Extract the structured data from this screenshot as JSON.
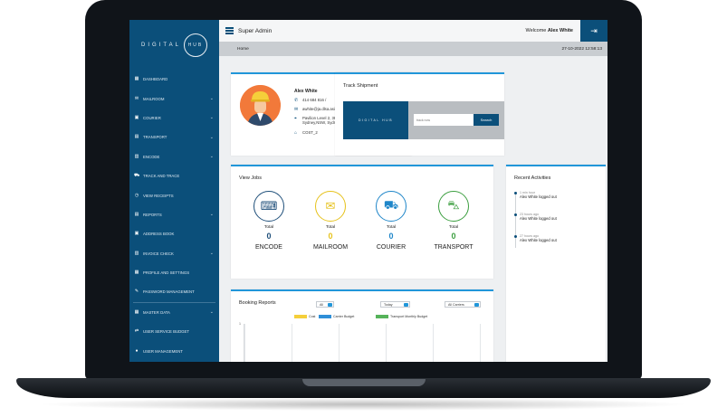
{
  "sidebar": {
    "logo_text": "DIGITAL",
    "logo_ring_text": "HUB",
    "items": [
      {
        "label": "DASHBOARD",
        "icon": "dashboard-icon",
        "glyph": "▦",
        "chevron": false
      },
      {
        "label": "MAILROOM",
        "icon": "mail-icon",
        "glyph": "✉",
        "chevron": true
      },
      {
        "label": "COURIER",
        "icon": "courier-icon",
        "glyph": "▣",
        "chevron": true
      },
      {
        "label": "TRANSPORT",
        "icon": "transport-icon",
        "glyph": "▤",
        "chevron": true
      },
      {
        "label": "ENCODE",
        "icon": "encode-icon",
        "glyph": "▥",
        "chevron": true
      },
      {
        "label": "TRACK AND TRACE",
        "icon": "truck-icon",
        "glyph": "⛟",
        "chevron": false
      },
      {
        "label": "VIEW RECEIPTS",
        "icon": "receipt-icon",
        "glyph": "◷",
        "chevron": false
      },
      {
        "label": "REPORTS",
        "icon": "report-icon",
        "glyph": "▤",
        "chevron": true
      },
      {
        "label": "ADDRESS BOOK",
        "icon": "address-book-icon",
        "glyph": "▣",
        "chevron": false
      },
      {
        "label": "INVOICE CHECK",
        "icon": "invoice-icon",
        "glyph": "▥",
        "chevron": true
      },
      {
        "label": "PROFILE AND SETTINGS",
        "icon": "settings-icon",
        "glyph": "▦",
        "chevron": false
      },
      {
        "label": "PASSWORD MANAGEMENT",
        "icon": "password-icon",
        "glyph": "✎",
        "chevron": false
      },
      {
        "label": "MASTER DATA",
        "icon": "database-icon",
        "glyph": "▦",
        "chevron": true
      },
      {
        "label": "USER SERVICE BUDGET",
        "icon": "budget-icon",
        "glyph": "⇄",
        "chevron": false
      },
      {
        "label": "USER MANAGEMENT",
        "icon": "user-management-icon",
        "glyph": "●",
        "chevron": false
      }
    ]
  },
  "header": {
    "role": "Super Admin",
    "welcome_prefix": "Welcome ",
    "user_name": "Alex White",
    "breadcrumb": "Home",
    "datetime": "27-10-2022 12:58:13"
  },
  "profile": {
    "name": "Alex White",
    "phone": "414 684 816 /",
    "email": "awhite@ja.dlsa.asia",
    "address_line1": "Pavilion Level 2, 388 George Street,",
    "address_line2": "Sydney,NSW, Sydney, 2000, Australia",
    "cost_centre": "COST_2"
  },
  "track": {
    "title": "Track Shipment",
    "logo_text": "DIGITAL HUB",
    "placeholder": "track now",
    "button": "Search"
  },
  "jobs": {
    "title": "View Jobs",
    "items": [
      {
        "total_label": "Total",
        "count": "0",
        "label": "ENCODE",
        "color": "#1f4f7a",
        "glyph": "⌨"
      },
      {
        "total_label": "Total",
        "count": "0",
        "label": "MAILROOM",
        "color": "#e6c21c",
        "glyph": "✉"
      },
      {
        "total_label": "Total",
        "count": "0",
        "label": "COURIER",
        "color": "#1f86c9",
        "glyph": "⛟"
      },
      {
        "total_label": "Total",
        "count": "0",
        "label": "TRANSPORT",
        "color": "#3b9e3f",
        "glyph": "⛍"
      }
    ]
  },
  "recent": {
    "title": "Recent Activities",
    "items": [
      {
        "ago": "1 min hour",
        "text": "Alex White logged out"
      },
      {
        "ago": "23 hours ago",
        "text": "Alex White logged out"
      },
      {
        "ago": "27 hours ago",
        "text": "Alex White logged out"
      }
    ]
  },
  "booking": {
    "title": "Booking Reports",
    "filter1": "All",
    "filter2": "Today",
    "filter3": "All Carriers",
    "legend": [
      {
        "label": "Cost",
        "color": "#f5cf3a"
      },
      {
        "label": "Carrier Budget",
        "color": "#2f8fd8"
      },
      {
        "label": "Transport Monthly Budget",
        "color": "#56b35a"
      }
    ],
    "y_tick": "1"
  },
  "colors": {
    "sidebar": "#0b4f7a",
    "accent": "#2196d9"
  }
}
